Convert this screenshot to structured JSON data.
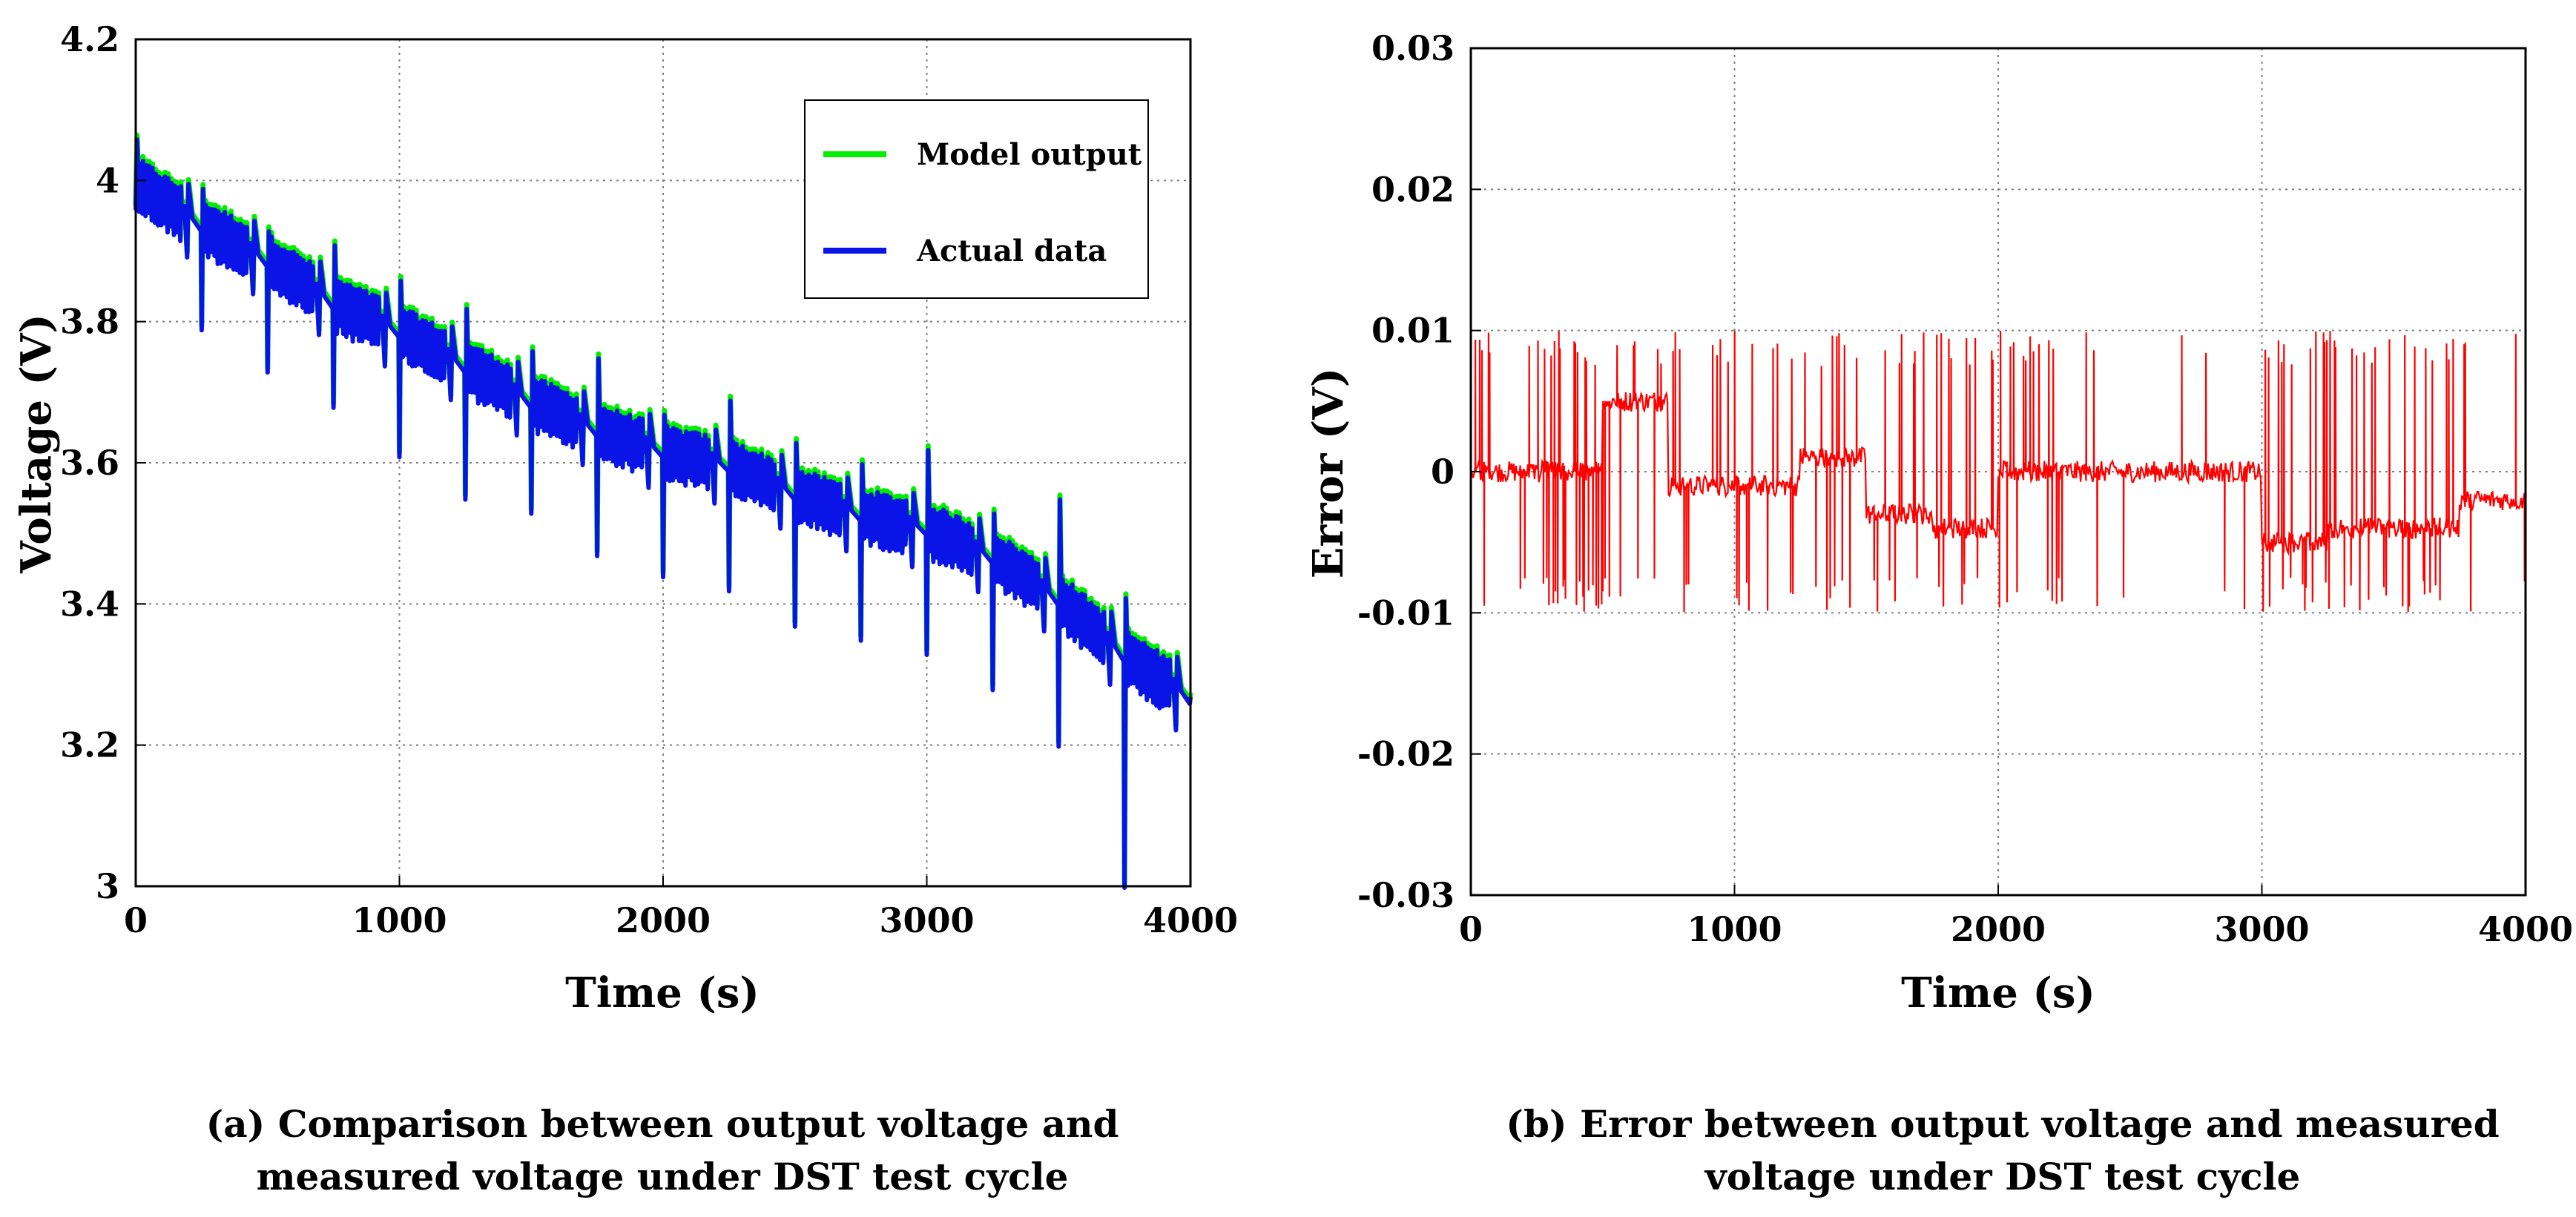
{
  "chart_data": [
    {
      "type": "line",
      "panel": "a",
      "xlabel": "Time (s)",
      "ylabel": "Voltage (V)",
      "xlim": [
        0,
        4000
      ],
      "ylim": [
        3.0,
        4.2
      ],
      "xticks": [
        0,
        1000,
        2000,
        3000,
        4000
      ],
      "xtick_labels": [
        "0",
        "1000",
        "2000",
        "3000",
        "4000"
      ],
      "yticks": [
        3.0,
        3.2,
        3.4,
        3.6,
        3.8,
        4.0,
        4.2
      ],
      "ytick_labels": [
        "3",
        "3.2",
        "3.4",
        "3.6",
        "3.8",
        "4",
        "4.2"
      ],
      "grid": true,
      "legend_position": "top-right",
      "series": [
        {
          "name": "Model output",
          "color": "#00ee00"
        },
        {
          "name": "Actual data",
          "color": "#0a14e6"
        }
      ],
      "cycle_start_times": [
        0,
        250,
        500,
        750,
        1000,
        1250,
        1500,
        1750,
        2000,
        2250,
        2500,
        2750,
        3000,
        3250,
        3500,
        3750
      ],
      "cycle_base_voltage": [
        4.0,
        3.94,
        3.89,
        3.83,
        3.79,
        3.74,
        3.69,
        3.65,
        3.62,
        3.6,
        3.56,
        3.53,
        3.51,
        3.47,
        3.41,
        3.33
      ],
      "cycle_peak_voltage": [
        4.06,
        3.99,
        3.93,
        3.91,
        3.86,
        3.82,
        3.76,
        3.75,
        3.67,
        3.69,
        3.63,
        3.6,
        3.62,
        3.53,
        3.55,
        3.41
      ],
      "cycle_min_voltage": [
        3.96,
        3.79,
        3.73,
        3.68,
        3.61,
        3.55,
        3.53,
        3.47,
        3.44,
        3.42,
        3.37,
        3.35,
        3.33,
        3.28,
        3.2,
        3.0
      ],
      "end_voltage": 3.27,
      "caption": [
        "(a) Comparison  between output voltage and",
        "measured voltage under DST test cycle"
      ]
    },
    {
      "type": "line",
      "panel": "b",
      "xlabel": "Time (s)",
      "ylabel": "Error (V)",
      "xlim": [
        0,
        4000
      ],
      "ylim": [
        -0.03,
        0.03
      ],
      "xticks": [
        0,
        1000,
        2000,
        3000,
        4000
      ],
      "xtick_labels": [
        "0",
        "1000",
        "2000",
        "3000",
        "4000"
      ],
      "yticks": [
        -0.03,
        -0.02,
        -0.01,
        0,
        0.01,
        0.02,
        0.03
      ],
      "ytick_labels": [
        "-0.03",
        "-0.02",
        "-0.01",
        "0",
        "0.01",
        "0.02",
        "0.03"
      ],
      "grid": true,
      "series": [
        {
          "name": "Error",
          "color": "#ff0000"
        }
      ],
      "error_range": [
        -0.01,
        0.01
      ],
      "segments": [
        {
          "start": 0,
          "end": 250,
          "baseline": 0.0,
          "spikes": 10
        },
        {
          "start": 250,
          "end": 500,
          "baseline": 0.0,
          "spikes": 40
        },
        {
          "start": 500,
          "end": 750,
          "baseline": 0.005,
          "spikes": 12
        },
        {
          "start": 750,
          "end": 1000,
          "baseline": -0.001,
          "spikes": 10
        },
        {
          "start": 1000,
          "end": 1250,
          "baseline": -0.001,
          "spikes": 14
        },
        {
          "start": 1250,
          "end": 1500,
          "baseline": 0.001,
          "spikes": 14
        },
        {
          "start": 1500,
          "end": 1750,
          "baseline": -0.003,
          "spikes": 12
        },
        {
          "start": 1750,
          "end": 2000,
          "baseline": -0.004,
          "spikes": 14
        },
        {
          "start": 2000,
          "end": 2250,
          "baseline": 0.0,
          "spikes": 22
        },
        {
          "start": 2250,
          "end": 2500,
          "baseline": 0.0,
          "spikes": 4
        },
        {
          "start": 2500,
          "end": 2750,
          "baseline": 0.0,
          "spikes": 2
        },
        {
          "start": 2750,
          "end": 3000,
          "baseline": 0.0,
          "spikes": 3
        },
        {
          "start": 3000,
          "end": 3250,
          "baseline": -0.005,
          "spikes": 24
        },
        {
          "start": 3250,
          "end": 3500,
          "baseline": -0.004,
          "spikes": 18
        },
        {
          "start": 3500,
          "end": 3750,
          "baseline": -0.004,
          "spikes": 16
        },
        {
          "start": 3750,
          "end": 4000,
          "baseline": -0.002,
          "spikes": 6
        }
      ],
      "caption": [
        "(b) Error between output voltage and measured",
        "voltage under DST test cycle"
      ]
    }
  ]
}
